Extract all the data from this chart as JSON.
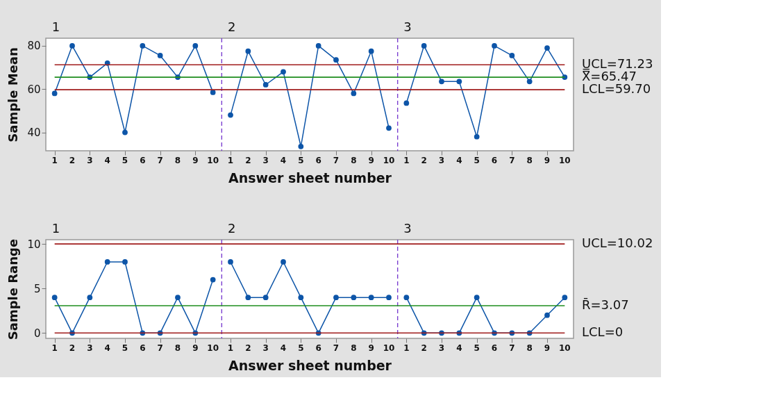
{
  "chart_data": [
    {
      "type": "line",
      "ylabel": "Sample Mean",
      "xlabel": "Answer sheet  number",
      "categories": [
        "1",
        "2",
        "3",
        "4",
        "5",
        "6",
        "7",
        "8",
        "9",
        "10",
        "1",
        "2",
        "3",
        "4",
        "5",
        "6",
        "7",
        "8",
        "9",
        "10",
        "1",
        "2",
        "3",
        "4",
        "5",
        "6",
        "7",
        "8",
        "9",
        "10"
      ],
      "series": [
        {
          "color": "#0d55a8",
          "values": [
            58,
            80,
            65.5,
            72,
            40,
            80,
            75.5,
            65.5,
            80,
            58.5,
            null,
            null,
            null,
            null,
            null,
            null,
            null,
            null,
            null,
            null,
            null,
            null,
            null,
            null,
            null,
            null,
            null,
            null,
            null,
            null
          ]
        },
        {
          "color": "#0d55a8",
          "values": [
            null,
            null,
            null,
            null,
            null,
            null,
            null,
            null,
            null,
            null,
            48,
            77.5,
            62,
            68,
            33.5,
            80,
            73.5,
            58,
            77.5,
            42,
            null,
            null,
            null,
            null,
            null,
            null,
            null,
            null,
            null,
            null
          ]
        },
        {
          "color": "#0d55a8",
          "values": [
            null,
            null,
            null,
            null,
            null,
            null,
            null,
            null,
            null,
            null,
            null,
            null,
            null,
            null,
            null,
            null,
            null,
            null,
            null,
            null,
            53.5,
            80,
            63.5,
            63.5,
            38,
            80,
            75.5,
            63.5,
            79,
            65.5
          ]
        }
      ],
      "ylim": [
        31.5,
        83.5
      ],
      "yticks": [
        40,
        60,
        80
      ],
      "ref_lines": [
        {
          "axis": "y",
          "value": 71.23,
          "label": "UCL=71.23",
          "color": "#a01c1c"
        },
        {
          "axis": "y",
          "value": 65.47,
          "label": "X̿=65.47",
          "color": "#1e8c1e"
        },
        {
          "axis": "y",
          "value": 59.7,
          "label": "LCL=59.70",
          "color": "#a01c1c"
        }
      ],
      "annotations": [
        "1",
        "2",
        "3"
      ],
      "grid": false,
      "legend": false,
      "marker": "circle",
      "line_style": "solid"
    },
    {
      "type": "line",
      "ylabel": "Sample Range",
      "xlabel": "Answer sheet  number",
      "categories": [
        "1",
        "2",
        "3",
        "4",
        "5",
        "6",
        "7",
        "8",
        "9",
        "10",
        "1",
        "2",
        "3",
        "4",
        "5",
        "6",
        "7",
        "8",
        "9",
        "10",
        "1",
        "2",
        "3",
        "4",
        "5",
        "6",
        "7",
        "8",
        "9",
        "10"
      ],
      "series": [
        {
          "color": "#0d55a8",
          "values": [
            4,
            0,
            4,
            8,
            8,
            0,
            0,
            4,
            0,
            6,
            null,
            null,
            null,
            null,
            null,
            null,
            null,
            null,
            null,
            null,
            null,
            null,
            null,
            null,
            null,
            null,
            null,
            null,
            null,
            null
          ]
        },
        {
          "color": "#0d55a8",
          "values": [
            null,
            null,
            null,
            null,
            null,
            null,
            null,
            null,
            null,
            null,
            8,
            4,
            4,
            8,
            4,
            0,
            4,
            4,
            4,
            4,
            null,
            null,
            null,
            null,
            null,
            null,
            null,
            null,
            null,
            null
          ]
        },
        {
          "color": "#0d55a8",
          "values": [
            null,
            null,
            null,
            null,
            null,
            null,
            null,
            null,
            null,
            null,
            null,
            null,
            null,
            null,
            null,
            null,
            null,
            null,
            null,
            null,
            4,
            0,
            0,
            0,
            4,
            0,
            0,
            0,
            2,
            4
          ]
        }
      ],
      "ylim": [
        -0.6,
        10.5
      ],
      "yticks": [
        0,
        5,
        10
      ],
      "ref_lines": [
        {
          "axis": "y",
          "value": 10.02,
          "label": "UCL=10.02",
          "color": "#a01c1c"
        },
        {
          "axis": "y",
          "value": 3.07,
          "label": "R̄=3.07",
          "color": "#1e8c1e"
        },
        {
          "axis": "y",
          "value": 0,
          "label": "LCL=0",
          "color": "#a01c1c"
        }
      ],
      "annotations": [
        "1",
        "2",
        "3"
      ],
      "grid": false,
      "legend": false,
      "marker": "circle",
      "line_style": "solid"
    }
  ]
}
